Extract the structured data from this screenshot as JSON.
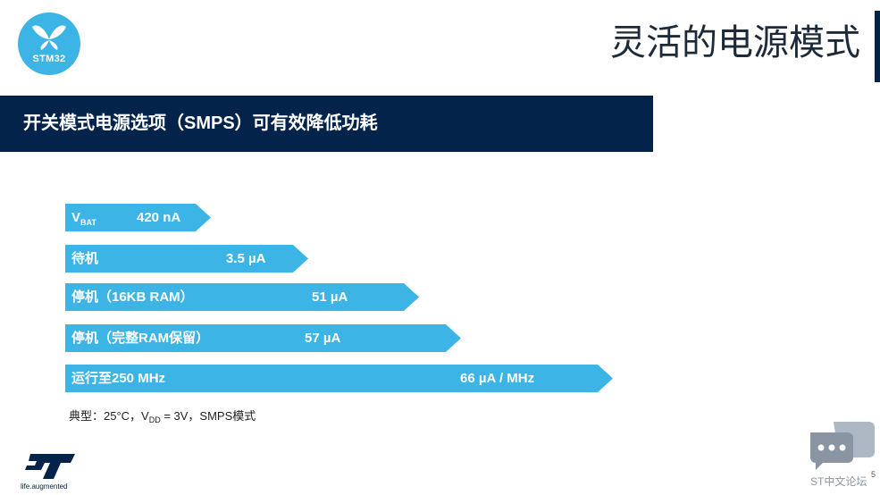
{
  "logo": {
    "text": "STM32",
    "icon": "butterfly-icon"
  },
  "slide": {
    "title": "灵活的电源模式",
    "subtitle": "开关模式电源选项（SMPS）可有效降低功耗"
  },
  "modes": [
    {
      "label_main": "V",
      "label_sub": "BAT",
      "value": "420 nA"
    },
    {
      "label": "待机",
      "value": "3.5 µA"
    },
    {
      "label": "停机（16KB RAM）",
      "value": "51 µA"
    },
    {
      "label": "停机（完整RAM保留）",
      "value": "57 µA"
    },
    {
      "label": "运行至250 MHz",
      "value": "66 µA / MHz"
    }
  ],
  "note": {
    "prefix": "典型：25°C，V",
    "sub": "DD",
    "suffix": " = 3V，SMPS模式"
  },
  "footer": {
    "st_tagline": "life.augmented",
    "forum_text": "ST中文论坛",
    "page_number": "5"
  },
  "colors": {
    "navy": "#03234b",
    "cyan": "#3cb4e6"
  }
}
